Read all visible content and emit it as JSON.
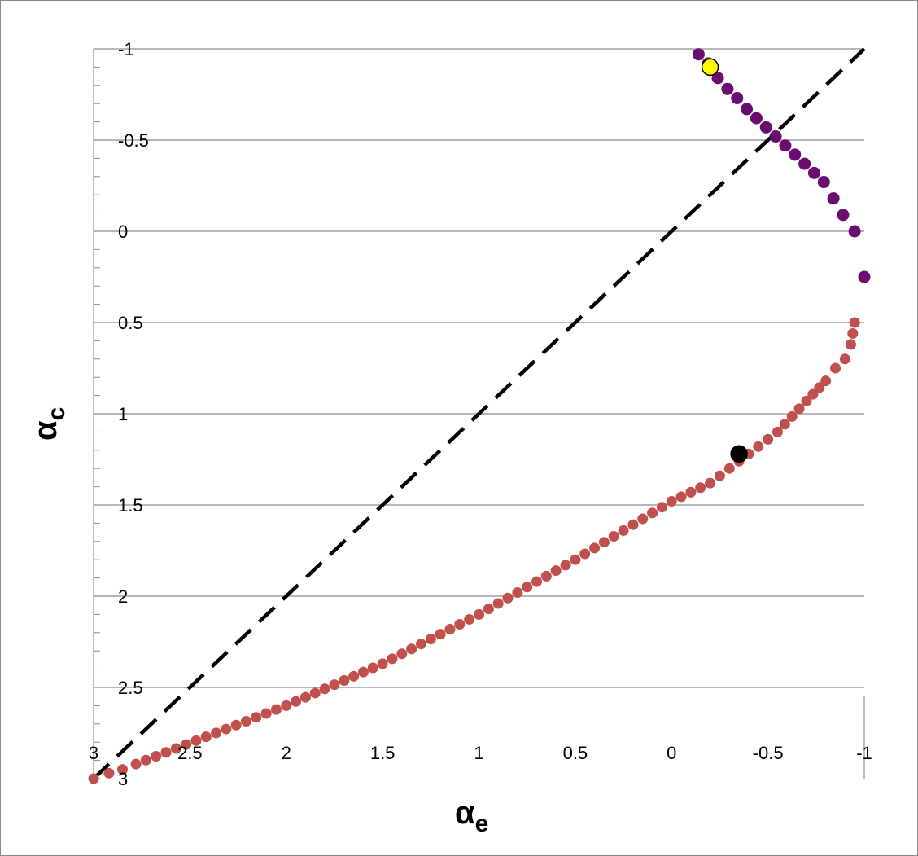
{
  "chart_data": {
    "type": "scatter",
    "xlabel": "α",
    "xlabel_sub": "e",
    "ylabel": "α",
    "ylabel_sub": "c",
    "xlim": [
      3,
      -1
    ],
    "ylim": [
      3,
      -1
    ],
    "x_reversed": true,
    "y_reversed": true,
    "x_ticks": [
      3,
      2.5,
      2,
      1.5,
      1,
      0.5,
      0,
      -0.5,
      -1
    ],
    "x_tick_labels": [
      "3",
      "2.5",
      "2",
      "1.5",
      "1",
      "0.5",
      "0",
      "-0.5",
      "-1"
    ],
    "y_ticks": [
      -1,
      -0.5,
      0,
      0.5,
      1,
      1.5,
      2,
      2.5,
      3
    ],
    "y_tick_labels": [
      "-1",
      "-0.5",
      "0",
      "0.5",
      "1",
      "1.5",
      "2",
      "2.5",
      "3"
    ],
    "grid": "horizontal",
    "legend": "none",
    "colors": {
      "upper_branch": "#6a0d6e",
      "lower_branch": "#c0504d",
      "yellow_marker": "#ffff00",
      "black_marker": "#000000",
      "diagonal": "#000000",
      "grid": "#8c8c8c"
    },
    "reference_line": {
      "style": "dashed",
      "from": [
        3,
        3
      ],
      "to": [
        -1,
        -1
      ]
    },
    "series": [
      {
        "points": [
          [
            -0.14,
            -0.97
          ],
          [
            -0.19,
            -0.92
          ],
          [
            -0.24,
            -0.84
          ],
          [
            -0.29,
            -0.78
          ],
          [
            -0.34,
            -0.73
          ],
          [
            -0.39,
            -0.67
          ],
          [
            -0.44,
            -0.62
          ],
          [
            -0.49,
            -0.57
          ],
          [
            -0.54,
            -0.52
          ],
          [
            -0.59,
            -0.47
          ],
          [
            -0.64,
            -0.42
          ],
          [
            -0.69,
            -0.37
          ],
          [
            -0.74,
            -0.32
          ],
          [
            -0.79,
            -0.27
          ],
          [
            -0.84,
            -0.18
          ],
          [
            -0.89,
            -0.09
          ],
          [
            -0.95,
            0.0
          ],
          [
            -1.0,
            0.25
          ]
        ]
      },
      {
        "points": [
          [
            3.0,
            3.0
          ],
          [
            2.92,
            2.97
          ],
          [
            2.85,
            2.95
          ],
          [
            2.78,
            2.92
          ],
          [
            2.0,
            2.6
          ],
          [
            1.5,
            2.37
          ],
          [
            1.0,
            2.1
          ],
          [
            0.5,
            1.8
          ],
          [
            0.0,
            1.48
          ],
          [
            -0.2,
            1.38
          ],
          [
            -0.4,
            1.22
          ],
          [
            -0.55,
            1.1
          ],
          [
            -0.7,
            0.93
          ],
          [
            -0.8,
            0.82
          ],
          [
            -0.85,
            0.75
          ],
          [
            -0.9,
            0.7
          ],
          [
            -0.93,
            0.62
          ],
          [
            -0.95,
            0.5
          ]
        ]
      }
    ],
    "markers": [
      {
        "x": -0.2,
        "y": -0.9,
        "color": "#ffff00"
      },
      {
        "x": -0.35,
        "y": 1.22,
        "color": "#000000"
      }
    ]
  }
}
